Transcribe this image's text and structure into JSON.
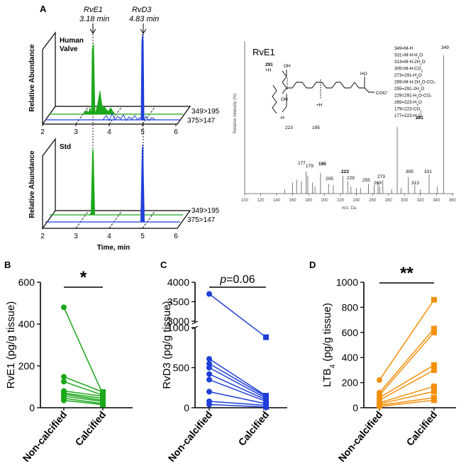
{
  "figure": {
    "panel_letters": [
      "A",
      "B",
      "C",
      "D"
    ],
    "colors": {
      "green": "#1aa81a",
      "blue": "#1f3fd8",
      "orange": "#f5900a",
      "axis": "#000000",
      "spectrum": "#555555"
    }
  },
  "panel_a": {
    "peak_labels": [
      {
        "name": "RvE1",
        "time": "3.18 min"
      },
      {
        "name": "RvD3",
        "time": "4.83 min"
      }
    ],
    "traces": {
      "top": "349>195",
      "bottom": "375>147"
    },
    "top_plot": {
      "label_line1": "Human",
      "label_line2": "Valve"
    },
    "bottom_plot": {
      "label": "Std"
    },
    "ylabel": "Relative Abundance",
    "xlabel": "Time, min",
    "ticks": [
      "2",
      "3",
      "4",
      "5",
      "6"
    ]
  },
  "spectrum": {
    "compound": "RvE1",
    "ylabel": "Relative Intensity (%)",
    "xlabel": "m/z, Da",
    "ticks": [
      "100",
      "120",
      "140",
      "160",
      "180",
      "200",
      "220",
      "240",
      "260",
      "280",
      "300",
      "320",
      "340",
      "360"
    ],
    "assignments": [
      {
        "base": "349=M-H",
        "sub": ""
      },
      {
        "base": "331=M-H-H",
        "sub": "2",
        "tail": "O"
      },
      {
        "base": "313=M-H-2H",
        "sub": "2",
        "tail": "O"
      },
      {
        "base": "305=M-H-CO",
        "sub": "2",
        "tail": ""
      },
      {
        "base": "273=291-H",
        "sub": "2",
        "tail": "O",
        "bold": "291"
      },
      {
        "base": "269=M-H-2H",
        "sub": "2",
        "tail": "O-CO₂"
      },
      {
        "base": "255=291-2H",
        "sub": "2",
        "tail": "O",
        "bold": "291"
      },
      {
        "base": "229=291-H",
        "sub": "2",
        "tail": "O-CO₂",
        "bold": "291"
      },
      {
        "base": "265=223-H",
        "sub": "2",
        "tail": "O",
        "bold": "223"
      },
      {
        "base": "179=223-CO",
        "sub": "2",
        "tail": "",
        "bold": "223"
      },
      {
        "base": "177=223-H",
        "sub": "2",
        "tail": "O",
        "bold": "223"
      }
    ],
    "peak_labels": [
      "349",
      "291",
      "331",
      "305",
      "313",
      "273",
      "269",
      "255",
      "229",
      "223",
      "205",
      "195",
      "179",
      "177"
    ],
    "structure_labels": {
      "p291": "291",
      "plusH1": "+H",
      "minusH": "-H",
      "p223": "223",
      "p195": "195",
      "plusH2": "+H",
      "oh": "HO",
      "coo": "COO⁻"
    }
  },
  "chart_data": [
    {
      "type": "scatter",
      "title": "RvE1",
      "significance": "*",
      "ylabel": "RvE1 (pg/g tissue)",
      "categories": [
        "Non-calcified",
        "Calcified"
      ],
      "ylim": [
        0,
        600
      ],
      "yticks": [
        "0",
        "200",
        "400",
        "600"
      ],
      "color": "#1aa81a",
      "paired_values": [
        [
          480,
          65
        ],
        [
          148,
          75
        ],
        [
          125,
          60
        ],
        [
          80,
          55
        ],
        [
          70,
          45
        ],
        [
          65,
          35
        ],
        [
          55,
          30
        ],
        [
          45,
          20
        ],
        [
          35,
          15
        ]
      ]
    },
    {
      "type": "scatter",
      "title": "RvD3",
      "significance": "p=0.06",
      "ylabel": "RvD3 (pg/g tissue)",
      "categories": [
        "Non-calcified",
        "Calcified"
      ],
      "ylim_lower": [
        0,
        1000
      ],
      "ylim_upper": [
        3000,
        4000
      ],
      "yticks": [
        "0",
        "500",
        "1000",
        "3000",
        "3500",
        "4000"
      ],
      "color": "#1f3fd8",
      "paired_values": [
        [
          3700,
          880
        ],
        [
          610,
          150
        ],
        [
          550,
          140
        ],
        [
          500,
          120
        ],
        [
          420,
          100
        ],
        [
          350,
          80
        ],
        [
          200,
          50
        ],
        [
          80,
          30
        ],
        [
          40,
          10
        ]
      ]
    },
    {
      "type": "scatter",
      "title": "LTB4",
      "significance": "**",
      "ylabel": "LTB4 (pg/g tissue)",
      "categories": [
        "Non-calcified",
        "Calcified"
      ],
      "ylim": [
        0,
        1000
      ],
      "yticks": [
        "0",
        "200",
        "400",
        "600",
        "800",
        "1000"
      ],
      "color": "#f5900a",
      "paired_values": [
        [
          220,
          860
        ],
        [
          120,
          630
        ],
        [
          100,
          600
        ],
        [
          80,
          340
        ],
        [
          60,
          300
        ],
        [
          40,
          170
        ],
        [
          30,
          130
        ],
        [
          20,
          80
        ],
        [
          10,
          60
        ]
      ]
    }
  ]
}
